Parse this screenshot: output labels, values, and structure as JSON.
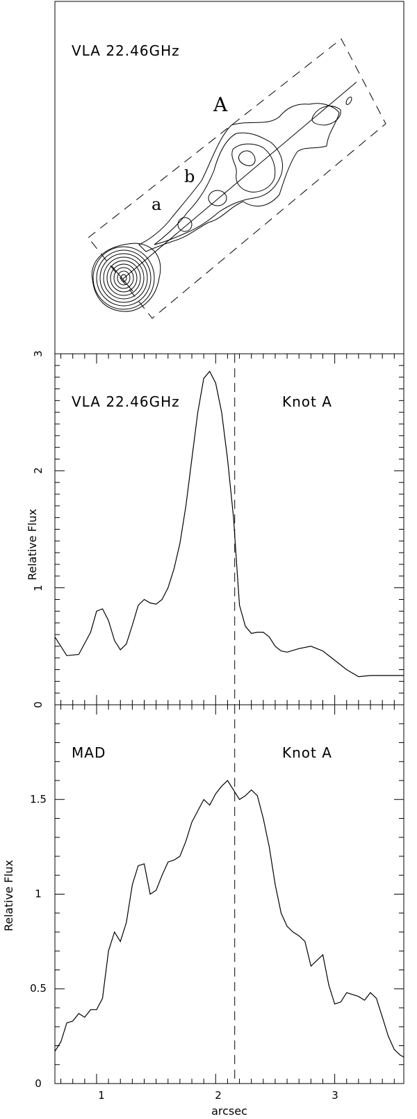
{
  "chart_data": [
    {
      "type": "contour",
      "title": "VLA 22.46GHz",
      "labels": [
        "A",
        "b",
        "a"
      ]
    },
    {
      "type": "line",
      "title": "VLA 22.46GHz",
      "annotation": "Knot A",
      "xlabel": "",
      "ylabel": "Relative Flux",
      "xlim": [
        0.65,
        3.58
      ],
      "ylim": [
        0,
        3
      ],
      "yticks": [
        "0",
        "1",
        "2",
        "3"
      ],
      "xticks": [],
      "marker_x": 2.16,
      "x": [
        0.65,
        0.75,
        0.85,
        0.95,
        1.0,
        1.05,
        1.1,
        1.15,
        1.2,
        1.25,
        1.3,
        1.35,
        1.4,
        1.45,
        1.5,
        1.55,
        1.6,
        1.65,
        1.7,
        1.75,
        1.8,
        1.85,
        1.9,
        1.95,
        2.0,
        2.05,
        2.1,
        2.15,
        2.18,
        2.2,
        2.25,
        2.3,
        2.35,
        2.4,
        2.45,
        2.5,
        2.55,
        2.6,
        2.7,
        2.8,
        2.9,
        3.0,
        3.1,
        3.2,
        3.3,
        3.4,
        3.5,
        3.58
      ],
      "y": [
        0.58,
        0.42,
        0.43,
        0.62,
        0.8,
        0.82,
        0.72,
        0.55,
        0.47,
        0.52,
        0.68,
        0.85,
        0.9,
        0.87,
        0.86,
        0.9,
        1.0,
        1.16,
        1.38,
        1.7,
        2.1,
        2.5,
        2.79,
        2.85,
        2.75,
        2.5,
        2.1,
        1.6,
        1.15,
        0.85,
        0.67,
        0.61,
        0.62,
        0.62,
        0.58,
        0.5,
        0.46,
        0.45,
        0.48,
        0.5,
        0.46,
        0.38,
        0.3,
        0.24,
        0.25,
        0.25,
        0.25,
        0.25
      ]
    },
    {
      "type": "line",
      "title": "MAD",
      "annotation": "Knot A",
      "xlabel": "arcsec",
      "ylabel": "Relative Flux",
      "xlim": [
        0.65,
        3.58
      ],
      "ylim": [
        0,
        2
      ],
      "yticks": [
        "0",
        "0.5",
        "1",
        "1.5"
      ],
      "xticks": [
        "1",
        "2",
        "3"
      ],
      "marker_x": 2.16,
      "x": [
        0.65,
        0.7,
        0.75,
        0.8,
        0.85,
        0.9,
        0.95,
        1.0,
        1.05,
        1.1,
        1.15,
        1.2,
        1.25,
        1.3,
        1.35,
        1.4,
        1.45,
        1.5,
        1.55,
        1.6,
        1.65,
        1.7,
        1.75,
        1.8,
        1.85,
        1.9,
        1.95,
        2.0,
        2.05,
        2.1,
        2.15,
        2.2,
        2.25,
        2.3,
        2.35,
        2.4,
        2.45,
        2.5,
        2.55,
        2.6,
        2.65,
        2.7,
        2.75,
        2.8,
        2.85,
        2.9,
        2.95,
        3.0,
        3.05,
        3.1,
        3.15,
        3.2,
        3.25,
        3.3,
        3.35,
        3.4,
        3.45,
        3.5,
        3.55,
        3.58
      ],
      "y": [
        0.17,
        0.22,
        0.32,
        0.33,
        0.37,
        0.35,
        0.39,
        0.39,
        0.45,
        0.7,
        0.8,
        0.75,
        0.85,
        1.05,
        1.15,
        1.16,
        1.0,
        1.02,
        1.1,
        1.17,
        1.18,
        1.2,
        1.28,
        1.38,
        1.44,
        1.5,
        1.47,
        1.53,
        1.57,
        1.6,
        1.55,
        1.5,
        1.52,
        1.55,
        1.52,
        1.4,
        1.25,
        1.05,
        0.9,
        0.83,
        0.8,
        0.78,
        0.75,
        0.62,
        0.65,
        0.68,
        0.52,
        0.42,
        0.43,
        0.48,
        0.47,
        0.46,
        0.44,
        0.48,
        0.45,
        0.35,
        0.25,
        0.18,
        0.15,
        0.14
      ]
    }
  ]
}
